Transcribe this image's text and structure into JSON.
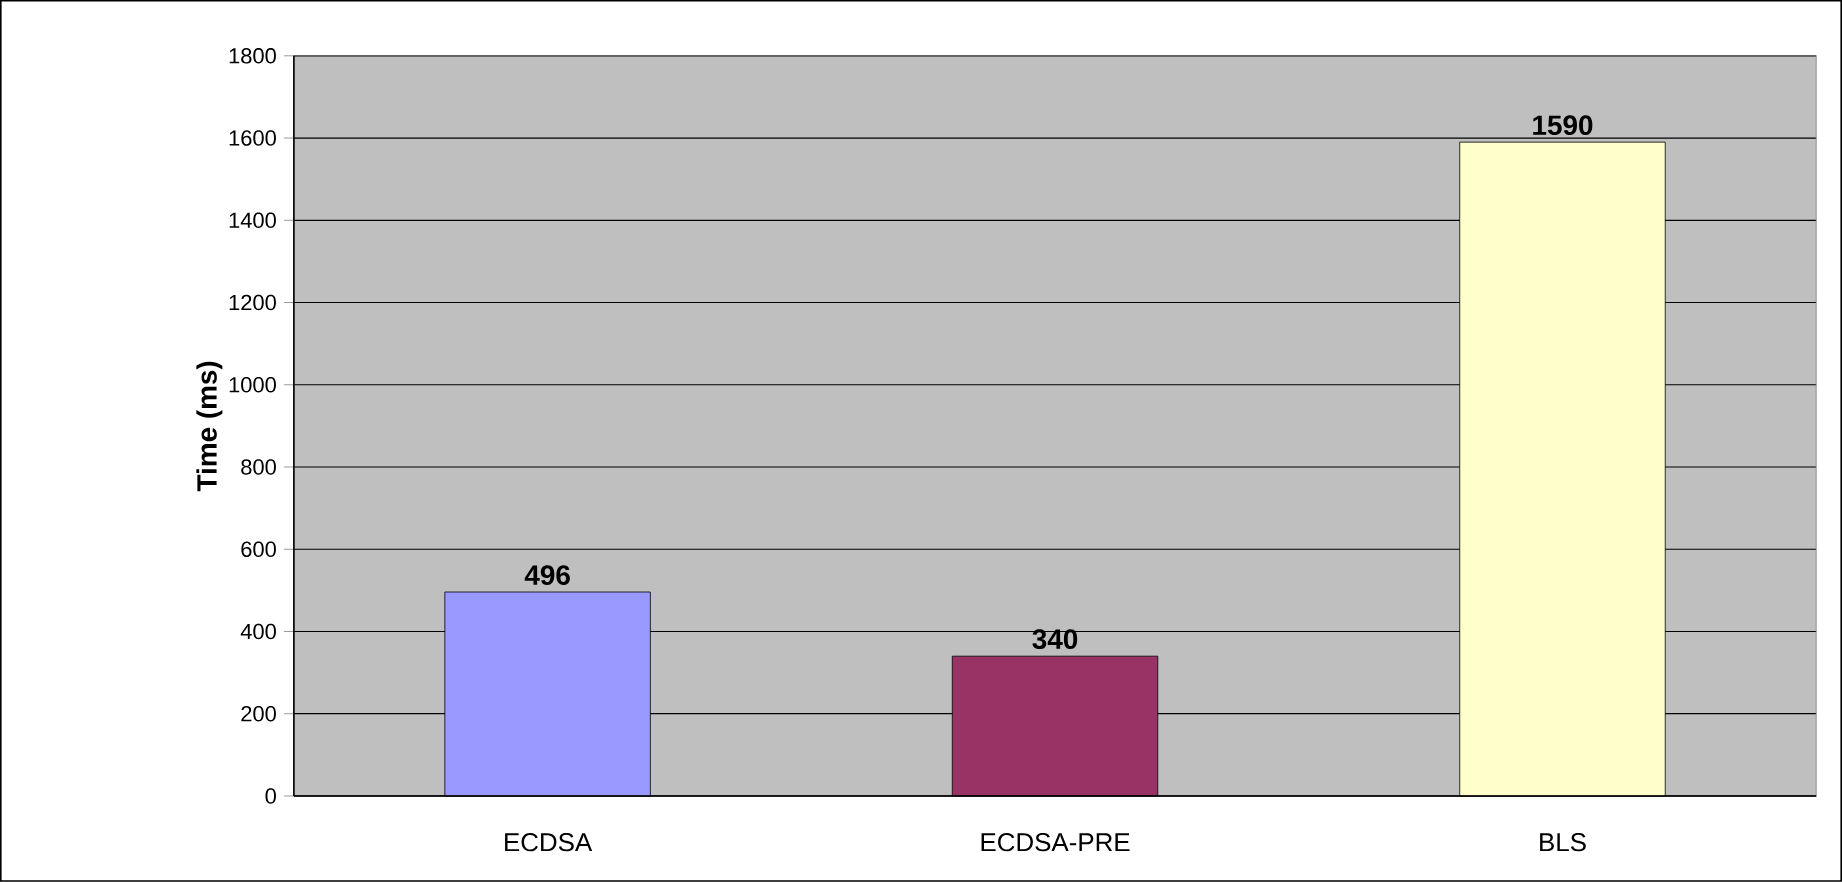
{
  "chart_data": {
    "type": "bar",
    "ylabel": "Time (ms)",
    "categories": [
      "ECDSA",
      "ECDSA-PRE",
      "BLS"
    ],
    "values": [
      496,
      340,
      1590
    ],
    "colors": [
      "#9999ff",
      "#993366",
      "#ffffcc"
    ],
    "ylim": [
      0,
      1800
    ],
    "yticks": [
      0,
      200,
      400,
      600,
      800,
      1000,
      1200,
      1400,
      1600,
      1800
    ],
    "grid": "y",
    "data_labels": true
  }
}
